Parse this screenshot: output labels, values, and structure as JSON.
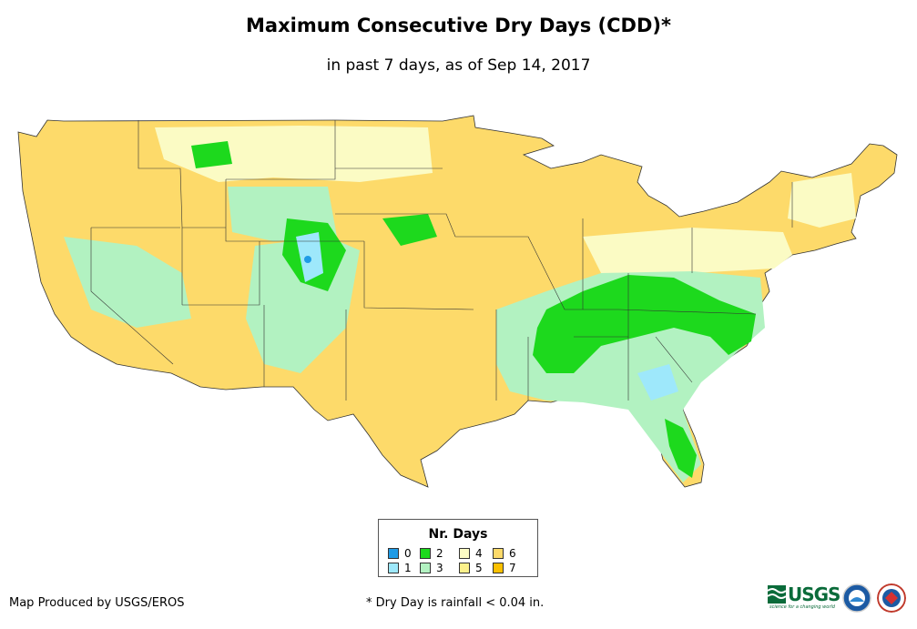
{
  "header": {
    "title": "Maximum Consecutive Dry Days (CDD)*",
    "subtitle": "in past 7 days, as of Sep 14, 2017"
  },
  "legend": {
    "title": "Nr. Days",
    "items": [
      {
        "label": "0",
        "color": "#1f9be6"
      },
      {
        "label": "1",
        "color": "#9ee8fb"
      },
      {
        "label": "2",
        "color": "#1dd91d"
      },
      {
        "label": "3",
        "color": "#b2f2c1"
      },
      {
        "label": "4",
        "color": "#fbfbc4"
      },
      {
        "label": "5",
        "color": "#fcf18b"
      },
      {
        "label": "6",
        "color": "#fdda6a"
      },
      {
        "label": "7",
        "color": "#fbc000"
      }
    ]
  },
  "footer": {
    "producer": "Map Produced by USGS/EROS",
    "note": "* Dry Day is rainfall < 0.04 in."
  },
  "logos": {
    "usgs_text": "USGS",
    "usgs_tagline": "science for a changing world",
    "noaa_name": "NOAA seal",
    "nws_name": "National Weather Service seal"
  }
}
